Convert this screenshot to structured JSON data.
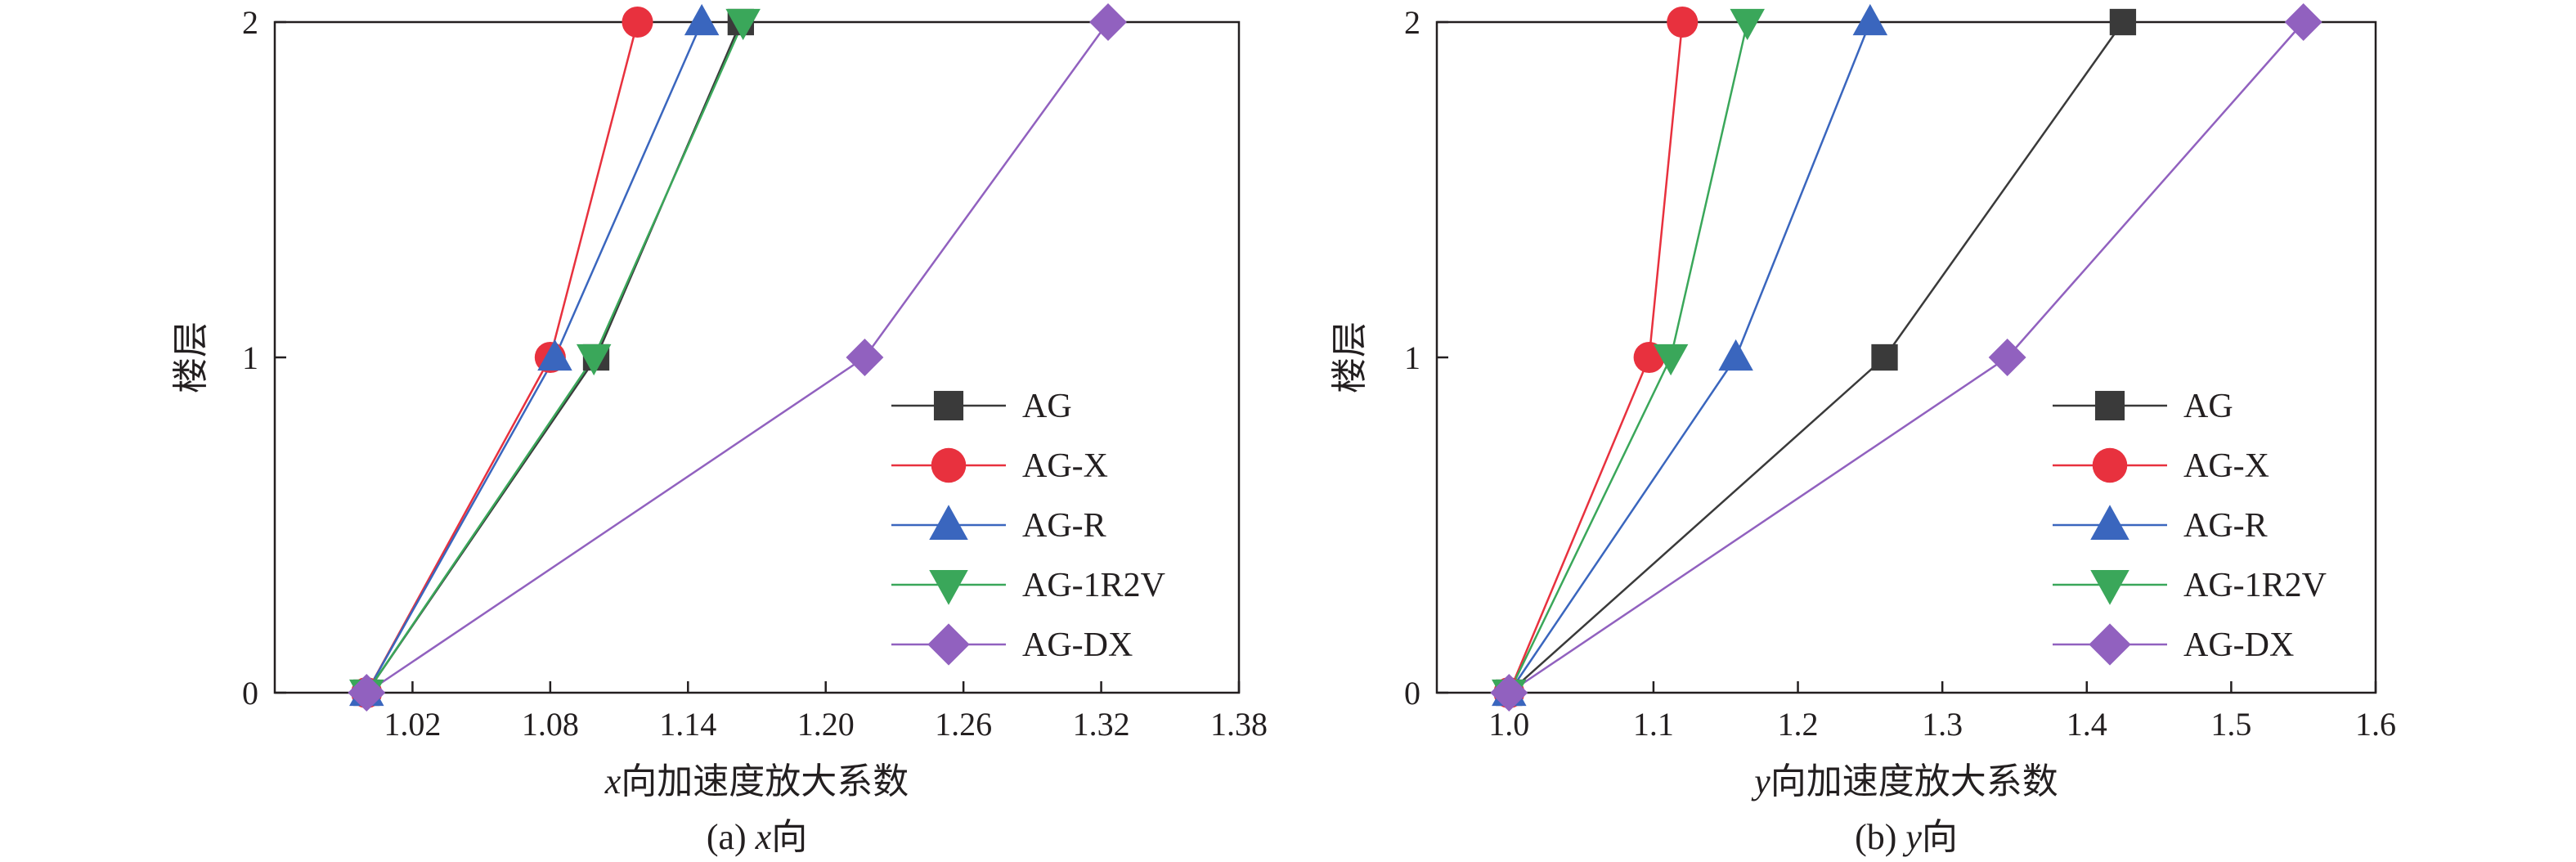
{
  "chart_data": [
    {
      "type": "line",
      "caption": "(a) x向",
      "caption_prefix": "(a) ",
      "caption_var": "x",
      "caption_suffix": "向",
      "xlabel": "x向加速度放大系数",
      "xlabel_var": "x",
      "xlabel_rest": "向加速度放大系数",
      "ylabel": "楼层",
      "xlim": [
        0.96,
        1.38
      ],
      "ylim": [
        0,
        2
      ],
      "xticks": [
        "1.02",
        "1.08",
        "1.14",
        "1.20",
        "1.26",
        "1.32",
        "1.38"
      ],
      "yticks": [
        "0",
        "1",
        "2"
      ],
      "legend_position": "lower-right",
      "grid": false,
      "series": [
        {
          "name": "AG",
          "color": "#3a3a3a",
          "marker": "square",
          "x": [
            1.0,
            1.1,
            1.163
          ],
          "y": [
            0,
            1,
            2
          ]
        },
        {
          "name": "AG-X",
          "color": "#e8313e",
          "marker": "circle",
          "x": [
            1.0,
            1.08,
            1.118
          ],
          "y": [
            0,
            1,
            2
          ]
        },
        {
          "name": "AG-R",
          "color": "#3a66be",
          "marker": "triangle-up",
          "x": [
            1.0,
            1.082,
            1.146
          ],
          "y": [
            0,
            1,
            2
          ]
        },
        {
          "name": "AG-1R2V",
          "color": "#3aa75a",
          "marker": "triangle-down",
          "x": [
            1.0,
            1.099,
            1.164
          ],
          "y": [
            0,
            1,
            2
          ]
        },
        {
          "name": "AG-DX",
          "color": "#9161bf",
          "marker": "diamond",
          "x": [
            1.0,
            1.217,
            1.323
          ],
          "y": [
            0,
            1,
            2
          ]
        }
      ]
    },
    {
      "type": "line",
      "caption": "(b) y向",
      "caption_prefix": "(b) ",
      "caption_var": "y",
      "caption_suffix": "向",
      "xlabel": "y向加速度放大系数",
      "xlabel_var": "y",
      "xlabel_rest": "向加速度放大系数",
      "ylabel": "楼层",
      "xlim": [
        0.95,
        1.6
      ],
      "ylim": [
        0,
        2
      ],
      "xticks": [
        "1.0",
        "1.1",
        "1.2",
        "1.3",
        "1.4",
        "1.5",
        "1.6"
      ],
      "yticks": [
        "0",
        "1",
        "2"
      ],
      "legend_position": "lower-right",
      "grid": false,
      "series": [
        {
          "name": "AG",
          "color": "#3a3a3a",
          "marker": "square",
          "x": [
            1.0,
            1.26,
            1.425
          ],
          "y": [
            0,
            1,
            2
          ]
        },
        {
          "name": "AG-X",
          "color": "#e8313e",
          "marker": "circle",
          "x": [
            1.0,
            1.097,
            1.12
          ],
          "y": [
            0,
            1,
            2
          ]
        },
        {
          "name": "AG-R",
          "color": "#3a66be",
          "marker": "triangle-up",
          "x": [
            1.0,
            1.157,
            1.25
          ],
          "y": [
            0,
            1,
            2
          ]
        },
        {
          "name": "AG-1R2V",
          "color": "#3aa75a",
          "marker": "triangle-down",
          "x": [
            1.0,
            1.112,
            1.165
          ],
          "y": [
            0,
            1,
            2
          ]
        },
        {
          "name": "AG-DX",
          "color": "#9161bf",
          "marker": "diamond",
          "x": [
            1.0,
            1.345,
            1.55
          ],
          "y": [
            0,
            1,
            2
          ]
        }
      ]
    }
  ]
}
